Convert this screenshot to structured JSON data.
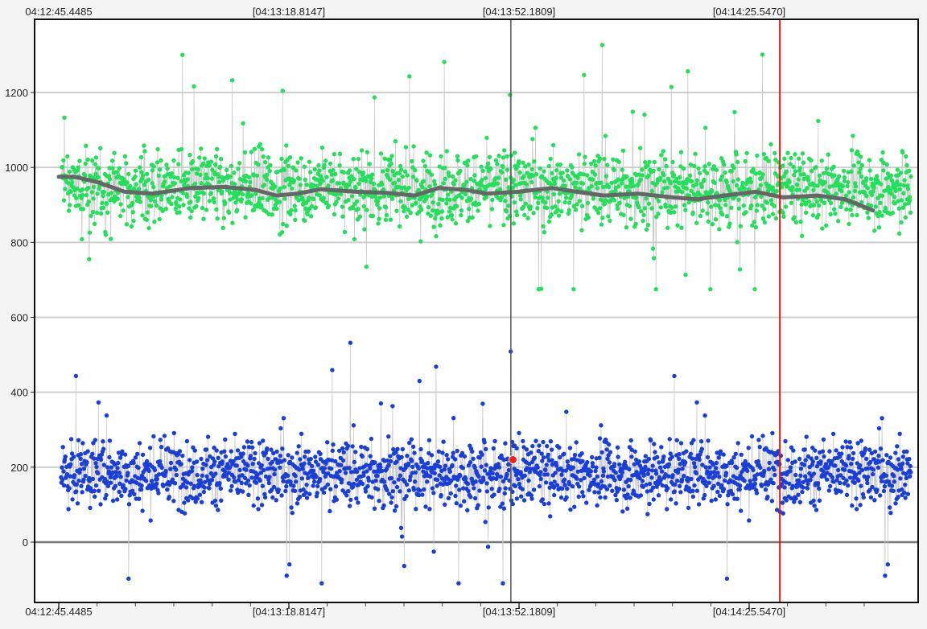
{
  "chart_data": {
    "type": "scatter",
    "title": "",
    "xlabel": "",
    "ylabel": "",
    "x_axis": {
      "type": "time",
      "start": "04:12:45.4485",
      "end": "04:14:46.0000",
      "tick_labels": [
        "04:12:45.4485",
        "[04:13:18.8147]",
        "[04:13:52.1809]",
        "[04:14:25.5470]"
      ],
      "tick_values": [
        "04:12:45.4485",
        "04:13:18.8147",
        "04:13:52.1809",
        "04:14:25.5470"
      ]
    },
    "ylim": [
      -160,
      1350
    ],
    "y_ticks": [
      0,
      200,
      400,
      600,
      800,
      1000,
      1200
    ],
    "grid": true,
    "baseline_y": 0,
    "series": [
      {
        "color": "#22e05a",
        "marker": "circle",
        "mean": 945,
        "spread": 110,
        "range": [
          675,
          1345
        ],
        "trend": [
          {
            "x": "04:12:45.4485",
            "y": 975
          },
          {
            "x": "04:12:47.8",
            "y": 975
          },
          {
            "x": "04:12:51.2",
            "y": 960
          },
          {
            "x": "04:12:55.0",
            "y": 935
          },
          {
            "x": "04:12:59.0",
            "y": 930
          },
          {
            "x": "04:13:04.5",
            "y": 945
          },
          {
            "x": "04:13:09.5",
            "y": 948
          },
          {
            "x": "04:13:14.0",
            "y": 940
          },
          {
            "x": "04:13:17.0",
            "y": 925
          },
          {
            "x": "04:13:20.0",
            "y": 930
          },
          {
            "x": "04:13:23.5",
            "y": 942
          },
          {
            "x": "04:13:28.5",
            "y": 935
          },
          {
            "x": "04:13:33.0",
            "y": 932
          },
          {
            "x": "04:13:37.0",
            "y": 925
          },
          {
            "x": "04:13:40.5",
            "y": 945
          },
          {
            "x": "04:13:44.5",
            "y": 940
          },
          {
            "x": "04:13:47.5",
            "y": 930
          },
          {
            "x": "04:13:52.0",
            "y": 935
          },
          {
            "x": "04:13:57.0",
            "y": 945
          },
          {
            "x": "04:14:00.5",
            "y": 935
          },
          {
            "x": "04:14:04.5",
            "y": 925
          },
          {
            "x": "04:14:09.5",
            "y": 930
          },
          {
            "x": "04:14:14.5",
            "y": 920
          },
          {
            "x": "04:14:18.0",
            "y": 915
          },
          {
            "x": "04:14:22.0",
            "y": 925
          },
          {
            "x": "04:14:26.5",
            "y": 935
          },
          {
            "x": "04:14:30.5",
            "y": 920
          },
          {
            "x": "04:14:35.5",
            "y": 925
          },
          {
            "x": "04:14:39.5",
            "y": 915
          },
          {
            "x": "04:14:43.5",
            "y": 885
          }
        ],
        "trend_color": "#666666"
      },
      {
        "color": "#1a3fd8",
        "marker": "circle",
        "mean": 185,
        "spread": 100,
        "range": [
          -110,
          580
        ]
      }
    ],
    "highlight_point": {
      "x": "04:13:51.3",
      "y": 220,
      "color": "#ff1a1a"
    },
    "cursor_line": {
      "x": "04:13:51.0",
      "color": "#555555"
    },
    "marker_line": {
      "x": "04:14:30.0",
      "color": "#d81818"
    }
  }
}
